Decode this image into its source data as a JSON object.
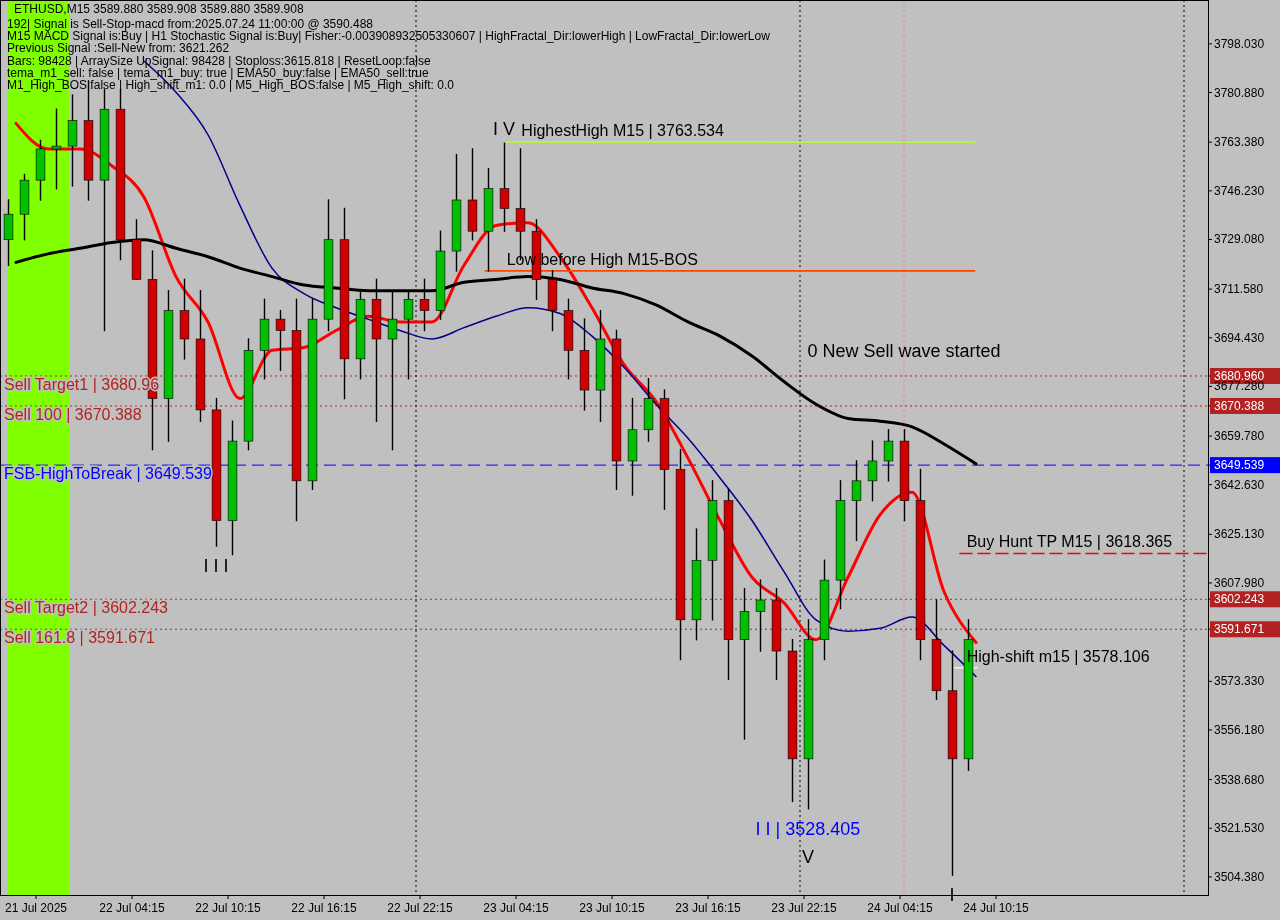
{
  "chart_data": {
    "type": "candlestick",
    "title": "ETHUSD,M15  3589.880 3589.908 3589.880 3589.908",
    "x": [
      "2025-07-21T20:30",
      "2025-07-21T21:30",
      "2025-07-21T22:30",
      "2025-07-21T23:30",
      "2025-07-22T00:30",
      "2025-07-22T01:30",
      "2025-07-22T02:30",
      "2025-07-22T03:30",
      "2025-07-22T04:30",
      "2025-07-22T05:30",
      "2025-07-22T06:30",
      "2025-07-22T07:30",
      "2025-07-22T08:30",
      "2025-07-22T09:30",
      "2025-07-22T10:30",
      "2025-07-22T11:30",
      "2025-07-22T12:30",
      "2025-07-22T13:30",
      "2025-07-22T14:30",
      "2025-07-22T15:30",
      "2025-07-22T16:30",
      "2025-07-22T17:30",
      "2025-07-22T18:30",
      "2025-07-22T19:30",
      "2025-07-22T20:30",
      "2025-07-22T21:30",
      "2025-07-22T22:30",
      "2025-07-22T23:30",
      "2025-07-23T00:30",
      "2025-07-23T01:30",
      "2025-07-23T02:30",
      "2025-07-23T03:30",
      "2025-07-23T04:30",
      "2025-07-23T05:30",
      "2025-07-23T06:30",
      "2025-07-23T07:30",
      "2025-07-23T08:30",
      "2025-07-23T09:30",
      "2025-07-23T10:30",
      "2025-07-23T11:30",
      "2025-07-23T12:30",
      "2025-07-23T13:30",
      "2025-07-23T14:30",
      "2025-07-23T15:30",
      "2025-07-23T16:30",
      "2025-07-23T17:30",
      "2025-07-23T18:30",
      "2025-07-23T19:30",
      "2025-07-23T20:30",
      "2025-07-23T21:30",
      "2025-07-23T22:30",
      "2025-07-23T23:30",
      "2025-07-24T00:30",
      "2025-07-24T01:30",
      "2025-07-24T02:30",
      "2025-07-24T03:30",
      "2025-07-24T04:30",
      "2025-07-24T05:30",
      "2025-07-24T06:30",
      "2025-07-24T07:30",
      "2025-07-24T08:30"
    ],
    "ohlc": [
      [
        3729,
        3743,
        3720,
        3738
      ],
      [
        3738,
        3752,
        3729,
        3750
      ],
      [
        3750,
        3764,
        3743,
        3761
      ],
      [
        3761,
        3775,
        3747,
        3762
      ],
      [
        3762,
        3780,
        3748,
        3771
      ],
      [
        3771,
        3785,
        3743,
        3750
      ],
      [
        3750,
        3782,
        3697,
        3775
      ],
      [
        3775,
        3782,
        3722,
        3729
      ],
      [
        3729,
        3736,
        3715,
        3715
      ],
      [
        3715,
        3725,
        3655,
        3673
      ],
      [
        3673,
        3711,
        3658,
        3704
      ],
      [
        3704,
        3715,
        3687,
        3694
      ],
      [
        3694,
        3711,
        3665,
        3669
      ],
      [
        3669,
        3673,
        3621,
        3630
      ],
      [
        3630,
        3665,
        3618,
        3658
      ],
      [
        3658,
        3694,
        3655,
        3690
      ],
      [
        3690,
        3708,
        3680,
        3701
      ],
      [
        3701,
        3704,
        3683,
        3697
      ],
      [
        3697,
        3708,
        3630,
        3644
      ],
      [
        3644,
        3708,
        3641,
        3701
      ],
      [
        3701,
        3743,
        3697,
        3729
      ],
      [
        3729,
        3740,
        3673,
        3687
      ],
      [
        3687,
        3711,
        3680,
        3708
      ],
      [
        3708,
        3715,
        3665,
        3694
      ],
      [
        3694,
        3711,
        3655,
        3701
      ],
      [
        3701,
        3711,
        3680,
        3708
      ],
      [
        3708,
        3715,
        3697,
        3704
      ],
      [
        3704,
        3732,
        3701,
        3725
      ],
      [
        3725,
        3759,
        3718,
        3743
      ],
      [
        3743,
        3761,
        3729,
        3732
      ],
      [
        3732,
        3754,
        3718,
        3747
      ],
      [
        3747,
        3763,
        3732,
        3740
      ],
      [
        3740,
        3761,
        3722,
        3732
      ],
      [
        3732,
        3736,
        3708,
        3715
      ],
      [
        3715,
        3718,
        3697,
        3704
      ],
      [
        3704,
        3708,
        3680,
        3690
      ],
      [
        3690,
        3701,
        3669,
        3676
      ],
      [
        3676,
        3704,
        3665,
        3694
      ],
      [
        3694,
        3697,
        3641,
        3651
      ],
      [
        3651,
        3673,
        3639,
        3662
      ],
      [
        3662,
        3680,
        3658,
        3673
      ],
      [
        3673,
        3676,
        3634,
        3648
      ],
      [
        3648,
        3655,
        3581,
        3595
      ],
      [
        3595,
        3627,
        3588,
        3616
      ],
      [
        3616,
        3644,
        3595,
        3637
      ],
      [
        3637,
        3641,
        3574,
        3588
      ],
      [
        3588,
        3606,
        3553,
        3598
      ],
      [
        3598,
        3609,
        3584,
        3602
      ],
      [
        3602,
        3606,
        3574,
        3584
      ],
      [
        3584,
        3588,
        3531,
        3546
      ],
      [
        3546,
        3595,
        3528.405,
        3588
      ],
      [
        3588,
        3616,
        3581,
        3609
      ],
      [
        3609,
        3644,
        3599,
        3637
      ],
      [
        3637,
        3651,
        3623,
        3644
      ],
      [
        3644,
        3658,
        3637,
        3651
      ],
      [
        3651,
        3662,
        3644,
        3658
      ],
      [
        3658,
        3662,
        3630,
        3637
      ],
      [
        3637,
        3648,
        3581,
        3588
      ],
      [
        3588,
        3602,
        3567,
        3570
      ],
      [
        3570,
        3584,
        3505,
        3546
      ],
      [
        3546,
        3595,
        3542,
        3588
      ]
    ],
    "colors": [
      "#00c000",
      "#00c000",
      "#00c000",
      "#00c000",
      "#00c000",
      "#d00000",
      "#00c000",
      "#d00000",
      "#d00000",
      "#d00000",
      "#00c000",
      "#d00000",
      "#d00000",
      "#d00000",
      "#00c000",
      "#00c000",
      "#00c000",
      "#d00000",
      "#d00000",
      "#00c000",
      "#00c000",
      "#d00000",
      "#00c000",
      "#d00000",
      "#00c000",
      "#00c000",
      "#d00000",
      "#00c000",
      "#00c000",
      "#d00000",
      "#00c000",
      "#d00000",
      "#d00000",
      "#d00000",
      "#d00000",
      "#d00000",
      "#d00000",
      "#00c000",
      "#d00000",
      "#00c000",
      "#00c000",
      "#d00000",
      "#d00000",
      "#00c000",
      "#00c000",
      "#d00000",
      "#00c000",
      "#00c000",
      "#d00000",
      "#d00000",
      "#00c000",
      "#00c000",
      "#00c000",
      "#00c000",
      "#00c000",
      "#00c000",
      "#d00000",
      "#d00000",
      "#d00000",
      "#d00000",
      "#00c000"
    ],
    "series": [
      {
        "type": "line",
        "color": "#ff0000",
        "x": [
          "2025-07-21T21:00",
          "2025-07-21T23:00",
          "2025-07-22T01:00",
          "2025-07-22T03:00",
          "2025-07-22T05:00",
          "2025-07-22T07:00",
          "2025-07-22T09:00",
          "2025-07-22T11:00",
          "2025-07-22T13:00",
          "2025-07-22T15:00",
          "2025-07-22T17:00",
          "2025-07-22T19:00",
          "2025-07-22T21:00",
          "2025-07-22T23:00",
          "2025-07-23T01:00",
          "2025-07-23T03:00",
          "2025-07-23T05:00",
          "2025-07-23T07:00",
          "2025-07-23T09:00",
          "2025-07-23T11:00",
          "2025-07-23T13:00",
          "2025-07-23T15:00",
          "2025-07-23T17:00",
          "2025-07-23T19:00",
          "2025-07-23T21:00",
          "2025-07-23T23:00",
          "2025-07-24T01:00",
          "2025-07-24T03:00",
          "2025-07-24T05:00",
          "2025-07-24T07:00",
          "2025-07-24T09:00"
        ],
        "values": [
          3770,
          3761,
          3761,
          3755,
          3744,
          3716,
          3700,
          3673,
          3690,
          3691,
          3697,
          3702,
          3700,
          3700,
          3720,
          3734,
          3735,
          3723,
          3705,
          3685,
          3672,
          3652,
          3630,
          3610,
          3601,
          3588,
          3610,
          3632,
          3640,
          3605,
          3587
        ]
      },
      {
        "type": "line",
        "color": "#00008b",
        "x": [
          "2025-07-22T05:00",
          "2025-07-22T07:00",
          "2025-07-22T09:00",
          "2025-07-22T11:00",
          "2025-07-22T13:00",
          "2025-07-22T15:00",
          "2025-07-22T17:00",
          "2025-07-22T19:00",
          "2025-07-22T21:00",
          "2025-07-22T23:00",
          "2025-07-23T01:00",
          "2025-07-23T03:00",
          "2025-07-23T05:00",
          "2025-07-23T07:00",
          "2025-07-23T09:00",
          "2025-07-23T11:00",
          "2025-07-23T13:00",
          "2025-07-23T15:00",
          "2025-07-23T17:00",
          "2025-07-23T19:00",
          "2025-07-23T21:00",
          "2025-07-23T23:00",
          "2025-07-24T01:00",
          "2025-07-24T03:00",
          "2025-07-24T05:00",
          "2025-07-24T07:00",
          "2025-07-24T09:00"
        ],
        "values": [
          3792,
          3781,
          3766,
          3741,
          3719,
          3710,
          3705,
          3701,
          3697,
          3694,
          3698,
          3702,
          3705,
          3703,
          3695,
          3684,
          3671,
          3659,
          3645,
          3630,
          3612,
          3595,
          3591,
          3592,
          3596,
          3586,
          3575
        ]
      },
      {
        "type": "line",
        "color": "#000000",
        "x": [
          "2025-07-21T21:00",
          "2025-07-21T23:00",
          "2025-07-22T01:00",
          "2025-07-22T03:00",
          "2025-07-22T05:00",
          "2025-07-22T07:00",
          "2025-07-22T09:00",
          "2025-07-22T11:00",
          "2025-07-22T13:00",
          "2025-07-22T15:00",
          "2025-07-22T17:00",
          "2025-07-22T19:00",
          "2025-07-22T21:00",
          "2025-07-22T23:00",
          "2025-07-23T01:00",
          "2025-07-23T03:00",
          "2025-07-23T05:00",
          "2025-07-23T07:00",
          "2025-07-23T09:00",
          "2025-07-23T11:00",
          "2025-07-23T13:00",
          "2025-07-23T15:00",
          "2025-07-23T17:00",
          "2025-07-23T19:00",
          "2025-07-23T21:00",
          "2025-07-23T23:00",
          "2025-07-24T01:00",
          "2025-07-24T03:00",
          "2025-07-24T05:00",
          "2025-07-24T07:00",
          "2025-07-24T09:00"
        ],
        "values": [
          3721,
          3724,
          3726,
          3728,
          3729,
          3726,
          3723,
          3719,
          3716,
          3713,
          3712,
          3711,
          3711,
          3711,
          3714,
          3715,
          3716,
          3715,
          3712,
          3710,
          3706,
          3700,
          3695,
          3688,
          3679,
          3671,
          3666,
          3665,
          3663,
          3657,
          3650
        ]
      },
      {
        "type": "line",
        "color": "#adff2f",
        "x": [
          "2025-07-23T03:35",
          "2025-07-24T08:55"
        ],
        "values": [
          3763.5,
          3763.5
        ]
      },
      {
        "type": "line",
        "color": "#ff4500",
        "x": [
          "2025-07-23T02:20",
          "2025-07-24T08:55"
        ],
        "values": [
          3718,
          3718
        ]
      },
      {
        "type": "line",
        "color": "#ff0000",
        "line_style": "dashed",
        "x": [
          "2025-07-24T08:00",
          "2025-07-24T23:25"
        ],
        "values": [
          3618.4,
          3618.4
        ]
      },
      {
        "type": "line",
        "color": "#f0f0f0",
        "x": [
          "2025-07-24T07:40",
          "2025-07-24T09:05"
        ],
        "values": [
          3578.1,
          3578.1
        ]
      }
    ],
    "ref_lines": [
      {
        "axis": "y",
        "value": 3680.96,
        "label": "Sell Target1 | 3680.96",
        "color": "#b22222",
        "line_style": "dotted"
      },
      {
        "axis": "y",
        "value": 3670.388,
        "label": "Sell 100 | 3670.388",
        "color": "#b22222",
        "line_style": "dotted"
      },
      {
        "axis": "y",
        "value": 3649.539,
        "label": "FSB-HighToBreak | 3649.539",
        "color": "#0000ff",
        "line_style": "dashed"
      },
      {
        "axis": "y",
        "value": 3602.243,
        "label": "Sell Target2 | 3602.243",
        "color": "#b22222",
        "line_style": "dotted"
      },
      {
        "axis": "y",
        "value": 3591.671,
        "label": "Sell 161.8 | 3591.671",
        "color": "#b22222",
        "line_style": "dotted"
      },
      {
        "axis": "x",
        "value": "2025-07-22T22:00",
        "color": "#000000",
        "line_style": "dotted"
      },
      {
        "axis": "x",
        "value": "2025-07-23T22:00",
        "color": "#000000",
        "line_style": "dotted"
      },
      {
        "axis": "x",
        "value": "2025-07-24T04:30",
        "color": "#ff69b4",
        "line_style": "dotted"
      },
      {
        "axis": "x",
        "value": "2025-07-24T22:00",
        "color": "#000000",
        "line_style": "dotted"
      }
    ],
    "bands": [
      {
        "axis": "x",
        "from": "2025-07-21T20:30",
        "to": "2025-07-22T00:20",
        "color": "#80ff00"
      }
    ],
    "annotations": [
      "192| Signal is Sell-Stop-macd from:2025.07.24 11:00:00 @ 3590.488",
      "M15 MACD Signal is:Buy | H1 Stochastic Signal is:Buy| Fisher:-0.003908932505330607 | HighFractal_Dir:lowerHigh | LowFractal_Dir:lowerLow",
      "Previous Signal :Sell-New from: 3621.262",
      "Bars: 98428 | ArraySize UpSignal: 98428 | Stoploss:3615.818 | ResetLoop:false",
      "tema_m1_sell: false | tema_m1_buy: true | EMA50_buy:false | EMA50_sell:true",
      "M1_High_BOS:false | High_shift_m1: 0.0 | M5_High_BOS:false | M5_High_shift: 0.0",
      {
        "text": "I V",
        "x": "2025-07-23T03:30",
        "y": 3763
      },
      {
        "text": "HighestHigh    M15 | 3763.534",
        "x": "2025-07-23T04:35",
        "y": 3763.5
      },
      {
        "text": "Low before High    M15-BOS",
        "x": "2025-07-23T03:40",
        "y": 3718
      },
      {
        "text": "0 New Sell wave started",
        "x": "2025-07-24T04:30",
        "y": 3685
      },
      {
        "text": "Buy Hunt TP M15 | 3618.365",
        "x": "2025-07-24T08:25",
        "y": 3618.4
      },
      {
        "text": "High-shift m15 | 3578.106",
        "x": "2025-07-24T08:25",
        "y": 3578.1
      },
      {
        "text": "I I I",
        "x": "2025-07-22T09:30",
        "y": 3621
      },
      {
        "text": "I I | 3528.405",
        "x": "2025-07-23T22:30",
        "y": 3528.405
      },
      {
        "text": "V",
        "x": "2025-07-23T22:30",
        "y": 3528.405
      },
      {
        "text": "I",
        "x": "2025-07-24T07:30",
        "y": 3505
      }
    ],
    "xlim": [
      "2025-07-21T20:00",
      "2025-07-24T23:30"
    ],
    "xticks": [
      {
        "value": "2025-07-21T22:15",
        "label": "21 Jul 2025"
      },
      {
        "value": "2025-07-22T04:15",
        "label": "22 Jul 04:15"
      },
      {
        "value": "2025-07-22T10:15",
        "label": "22 Jul 10:15"
      },
      {
        "value": "2025-07-22T16:15",
        "label": "22 Jul 16:15"
      },
      {
        "value": "2025-07-22T22:15",
        "label": "22 Jul 22:15"
      },
      {
        "value": "2025-07-23T04:15",
        "label": "23 Jul 04:15"
      },
      {
        "value": "2025-07-23T10:15",
        "label": "23 Jul 10:15"
      },
      {
        "value": "2025-07-23T16:15",
        "label": "23 Jul 16:15"
      },
      {
        "value": "2025-07-23T22:15",
        "label": "23 Jul 22:15"
      },
      {
        "value": "2025-07-24T04:15",
        "label": "24 Jul 04:15"
      },
      {
        "value": "2025-07-24T10:15",
        "label": "24 Jul 10:15"
      }
    ],
    "ylim": [
      3498,
      3813.5
    ],
    "yticks": [
      {
        "value": 3798.03,
        "label": "3798.030"
      },
      {
        "value": 3780.88,
        "label": "3780.880"
      },
      {
        "value": 3763.38,
        "label": "3763.380"
      },
      {
        "value": 3746.23,
        "label": "3746.230"
      },
      {
        "value": 3729.08,
        "label": "3729.080"
      },
      {
        "value": 3711.58,
        "label": "3711.580"
      },
      {
        "value": 3694.43,
        "label": "3694.430"
      },
      {
        "value": 3680.96,
        "label": "3680.960"
      },
      {
        "value": 3677.28,
        "label": "3677.280"
      },
      {
        "value": 3670.388,
        "label": "3670.388"
      },
      {
        "value": 3659.78,
        "label": "3659.780"
      },
      {
        "value": 3649.539,
        "label": "3649.539"
      },
      {
        "value": 3642.63,
        "label": "3642.630"
      },
      {
        "value": 3625.13,
        "label": "3625.130"
      },
      {
        "value": 3607.98,
        "label": "3607.980"
      },
      {
        "value": 3602.243,
        "label": "3602.243"
      },
      {
        "value": 3591.671,
        "label": "3591.671"
      },
      {
        "value": 3573.33,
        "label": "3573.330"
      },
      {
        "value": 3556.18,
        "label": "3556.180"
      },
      {
        "value": 3538.68,
        "label": "3538.680"
      },
      {
        "value": 3521.53,
        "label": "3521.530"
      },
      {
        "value": 3504.38,
        "label": "3504.380"
      }
    ]
  }
}
